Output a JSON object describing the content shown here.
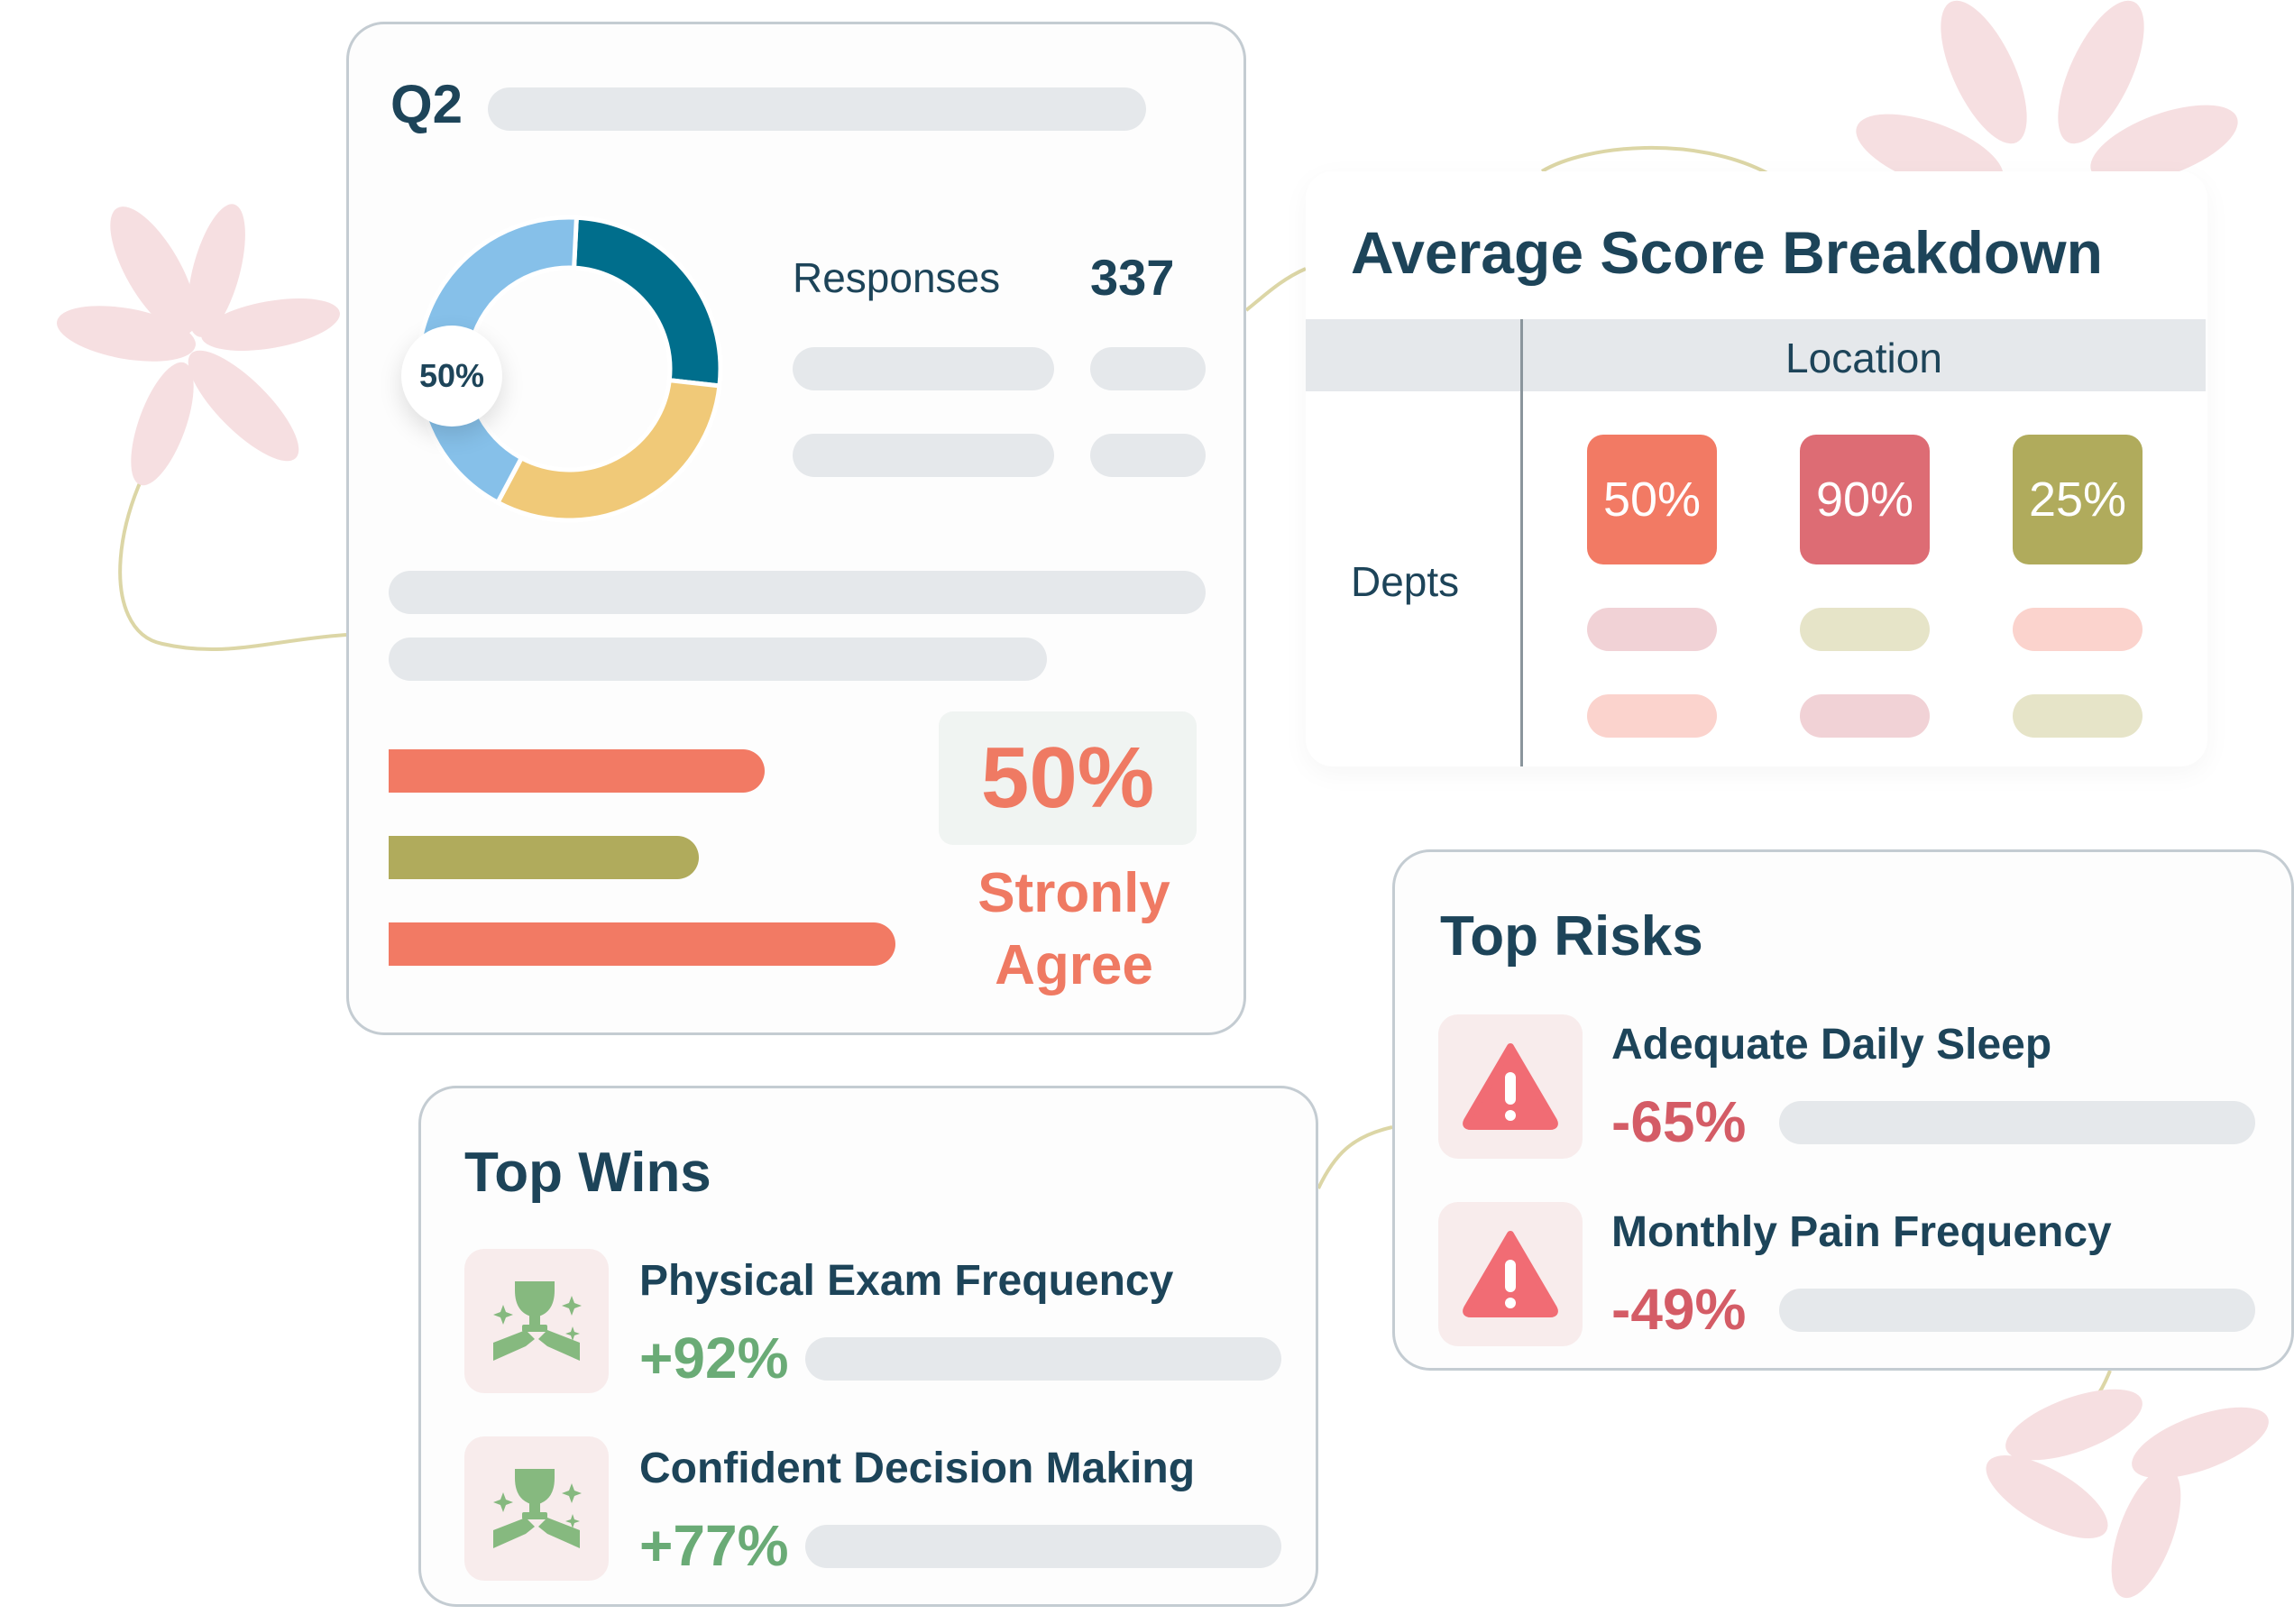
{
  "q2_card": {
    "title": "Q2",
    "donut_label": "50%",
    "donut_segments": [
      {
        "name": "teal",
        "fraction": 0.26,
        "color": "#006e8c"
      },
      {
        "name": "yellow",
        "fraction": 0.31,
        "color": "#f0c978"
      },
      {
        "name": "light-blue",
        "fraction": 0.43,
        "color": "#86c0e9"
      }
    ],
    "responses_label": "Responses",
    "responses_value": "337",
    "bars": [
      {
        "fraction": 0.46,
        "color": "#f27a64"
      },
      {
        "fraction": 0.38,
        "color": "#b0ab5c"
      },
      {
        "fraction": 0.62,
        "color": "#f27a64"
      }
    ],
    "agree_value": "50%",
    "agree_label": "Stronly\nAgree"
  },
  "breakdown": {
    "title": "Average Score Breakdown",
    "column_header": "Location",
    "row_header": "Depts",
    "scores": [
      {
        "value": "50%",
        "color": "#f27a64"
      },
      {
        "value": "90%",
        "color": "#dd6c74"
      },
      {
        "value": "25%",
        "color": "#b0ab5c"
      }
    ],
    "pill_colors": [
      [
        "#f1d2d6",
        "#e6e4c8",
        "#fbd3cd"
      ],
      [
        "#fbd3cd",
        "#f1d2d6",
        "#e6e4c8"
      ]
    ]
  },
  "top_risks": {
    "title": "Top Risks",
    "items": [
      {
        "label": "Adequate Daily Sleep",
        "value": "-65%",
        "icon": "warning-icon"
      },
      {
        "label": "Monthly Pain Frequency",
        "value": "-49%",
        "icon": "warning-icon"
      }
    ]
  },
  "top_wins": {
    "title": "Top Wins",
    "items": [
      {
        "label": "Physical Exam Frequency",
        "value": "+92%",
        "icon": "trophy-hands-icon"
      },
      {
        "label": "Confident Decision Making",
        "value": "+77%",
        "icon": "trophy-hands-icon"
      }
    ]
  }
}
